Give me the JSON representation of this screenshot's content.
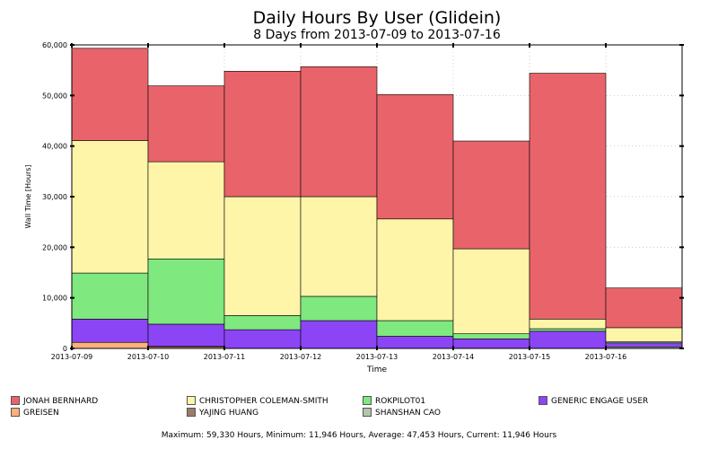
{
  "title": "Daily Hours By User (Glidein)",
  "subtitle": "8 Days from 2013-07-09 to 2013-07-16",
  "footer": "Maximum: 59,330 Hours, Minimum: 11,946 Hours, Average: 47,453 Hours, Current: 11,946 Hours",
  "chart_data": {
    "type": "bar",
    "stacked": true,
    "xlabel": "Time",
    "ylabel": "Wall Time [Hours]",
    "ylim": [
      0,
      60000
    ],
    "yticks": [
      "0",
      "10,000",
      "20,000",
      "30,000",
      "40,000",
      "50,000",
      "60,000"
    ],
    "categories": [
      "2013-07-09",
      "2013-07-10",
      "2013-07-11",
      "2013-07-12",
      "2013-07-13",
      "2013-07-14",
      "2013-07-15",
      "2013-07-16"
    ],
    "grid": true,
    "legend_position": "bottom",
    "series": [
      {
        "name": "GREISEN",
        "color": "#ffb07a",
        "values": [
          1200,
          300,
          0,
          0,
          0,
          0,
          0,
          0
        ]
      },
      {
        "name": "YAJING HUANG",
        "color": "#9c7b6b",
        "values": [
          0,
          100,
          0,
          0,
          0,
          0,
          0,
          0
        ]
      },
      {
        "name": "SHANSHAN CAO",
        "color": "#b3c7a8",
        "values": [
          0,
          0,
          0,
          0,
          0,
          0,
          0,
          300
        ]
      },
      {
        "name": "GENERIC ENGAGE USER",
        "color": "#8b45f5",
        "values": [
          4600,
          4400,
          3700,
          5500,
          2400,
          1900,
          3400,
          800
        ]
      },
      {
        "name": "ROKPILOT01",
        "color": "#7fe87f",
        "values": [
          9100,
          12900,
          2800,
          4800,
          3100,
          1000,
          500,
          200
        ]
      },
      {
        "name": "CHRISTOPHER COLEMAN-SMITH",
        "color": "#fff5a8",
        "values": [
          26200,
          19200,
          23500,
          19700,
          20100,
          16800,
          1900,
          2800
        ]
      },
      {
        "name": "JONAH BERNHARD",
        "color": "#e8646a",
        "values": [
          18230,
          15000,
          24800,
          25700,
          24600,
          21300,
          48600,
          7846
        ]
      }
    ]
  },
  "legend": [
    {
      "label": "JONAH BERNHARD",
      "color": "#e8646a"
    },
    {
      "label": "CHRISTOPHER COLEMAN-SMITH",
      "color": "#fff5a8"
    },
    {
      "label": "ROKPILOT01",
      "color": "#7fe87f"
    },
    {
      "label": "GENERIC ENGAGE USER",
      "color": "#8b45f5"
    },
    {
      "label": "GREISEN",
      "color": "#ffb07a"
    },
    {
      "label": "YAJING HUANG",
      "color": "#9c7b6b"
    },
    {
      "label": "SHANSHAN CAO",
      "color": "#b3c7a8"
    }
  ]
}
